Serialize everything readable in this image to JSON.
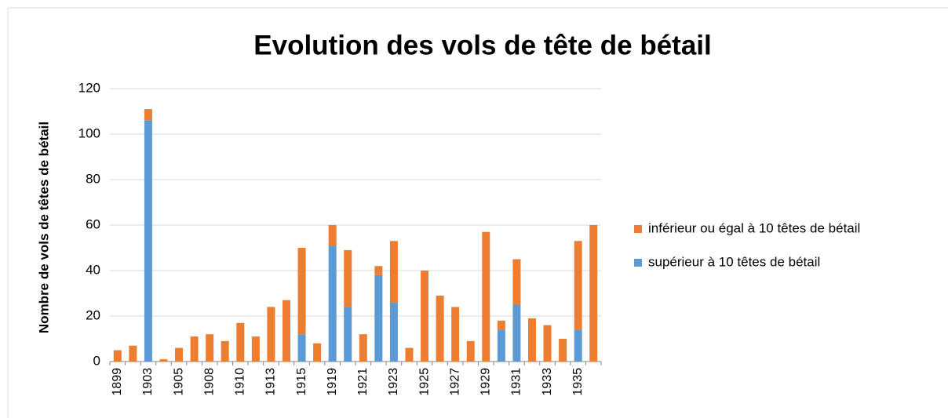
{
  "chart_data": {
    "type": "stacked_bar",
    "title": "Evolution des vols de tête de bétail",
    "y_label": "Nombre de vols de têtes de bétail",
    "categories": [
      "1899",
      null,
      "1903",
      null,
      "1905",
      null,
      "1908",
      null,
      "1910",
      null,
      "1913",
      null,
      "1915",
      null,
      "1919",
      null,
      "1921",
      null,
      "1923",
      null,
      "1925",
      null,
      "1927",
      null,
      "1929",
      null,
      "1931",
      null,
      "1933",
      null,
      "1935",
      null
    ],
    "series": [
      {
        "name": "supérieur à 10 têtes de bétail",
        "color": "#5b9bd5",
        "values": [
          0,
          0,
          106,
          0,
          0,
          0,
          0,
          0,
          0,
          0,
          0,
          0,
          12,
          0,
          51,
          24,
          0,
          38,
          26,
          0,
          0,
          0,
          0,
          0,
          0,
          14,
          25,
          0,
          0,
          0,
          14,
          0
        ]
      },
      {
        "name": "inférieur ou égal à 10 têtes de bétail",
        "color": "#ed7d31",
        "values": [
          5,
          7,
          5,
          1,
          6,
          11,
          12,
          9,
          17,
          11,
          24,
          27,
          38,
          8,
          9,
          25,
          12,
          4,
          27,
          6,
          40,
          29,
          24,
          9,
          57,
          4,
          20,
          19,
          16,
          10,
          39,
          60
        ]
      }
    ],
    "ylim": [
      0,
      120
    ],
    "yticks": [
      0,
      20,
      40,
      60,
      80,
      100,
      120
    ],
    "grid": true,
    "legend": "right"
  }
}
